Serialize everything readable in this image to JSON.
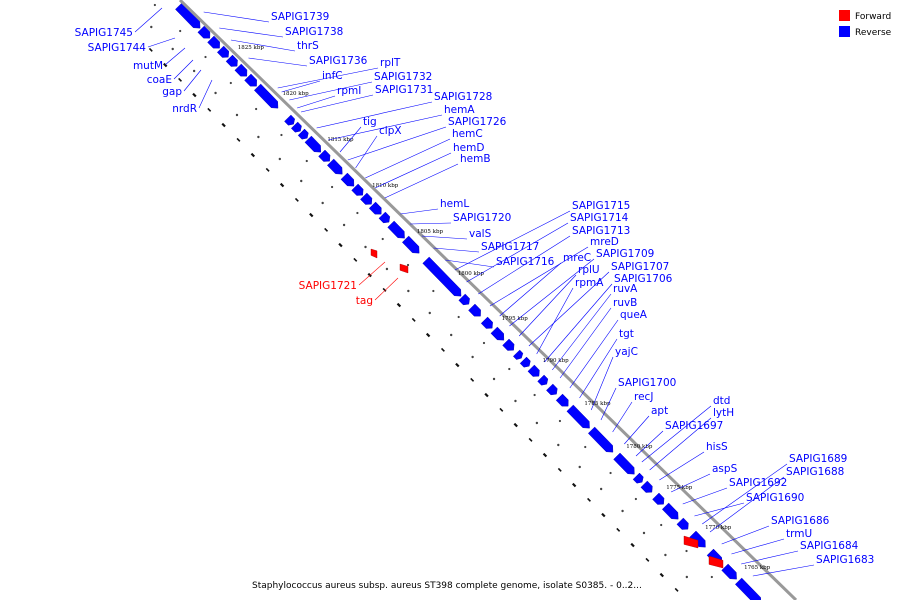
{
  "caption": "Staphylococcus aureus subsp. aureus ST398 complete genome, isolate S0385. - 0..2...",
  "legend": [
    {
      "label": "Forward",
      "color": "#ff0000"
    },
    {
      "label": "Reverse",
      "color": "#0000ff"
    }
  ],
  "colors": {
    "reverse": "#0000ff",
    "forward": "#ff0000",
    "backbone": "#999999"
  },
  "kbp_ticks": [
    "1825 kbp",
    "1820 kbp",
    "1815 kbp",
    "1810 kbp",
    "1805 kbp",
    "1800 kbp",
    "1795 kbp",
    "1790 kbp",
    "1785 kbp",
    "1780 kbp",
    "1775 kbp",
    "1770 kbp",
    "1765 kbp"
  ],
  "genes_left": [
    "SAPIG1745",
    "SAPIG1744",
    "mutM",
    "coaE",
    "gap",
    "nrdR"
  ],
  "genes_forward": [
    "SAPIG1721",
    "tag"
  ],
  "genes_right": [
    "SAPIG1739",
    "SAPIG1738",
    "thrS",
    "SAPIG1736",
    "rplT",
    "infC",
    "SAPIG1732",
    "rpmI",
    "SAPIG1731",
    "SAPIG1728",
    "hemA",
    "tig",
    "SAPIG1726",
    "clpX",
    "hemC",
    "hemD",
    "hemB",
    "hemL",
    "SAPIG1720",
    "valS",
    "SAPIG1717",
    "SAPIG1716",
    "SAPIG1715",
    "SAPIG1714",
    "SAPIG1713",
    "mreD",
    "mreC",
    "SAPIG1709",
    "rplU",
    "SAPIG1707",
    "rpmA",
    "SAPIG1706",
    "ruvA",
    "ruvB",
    "queA",
    "tgt",
    "yajC",
    "SAPIG1700",
    "recJ",
    "apt",
    "SAPIG1697",
    "dtd",
    "lytH",
    "hisS",
    "aspS",
    "SAPIG1692",
    "SAPIG1690",
    "SAPIG1689",
    "SAPIG1688",
    "SAPIG1686",
    "trmU",
    "SAPIG1684",
    "SAPIG1683"
  ]
}
